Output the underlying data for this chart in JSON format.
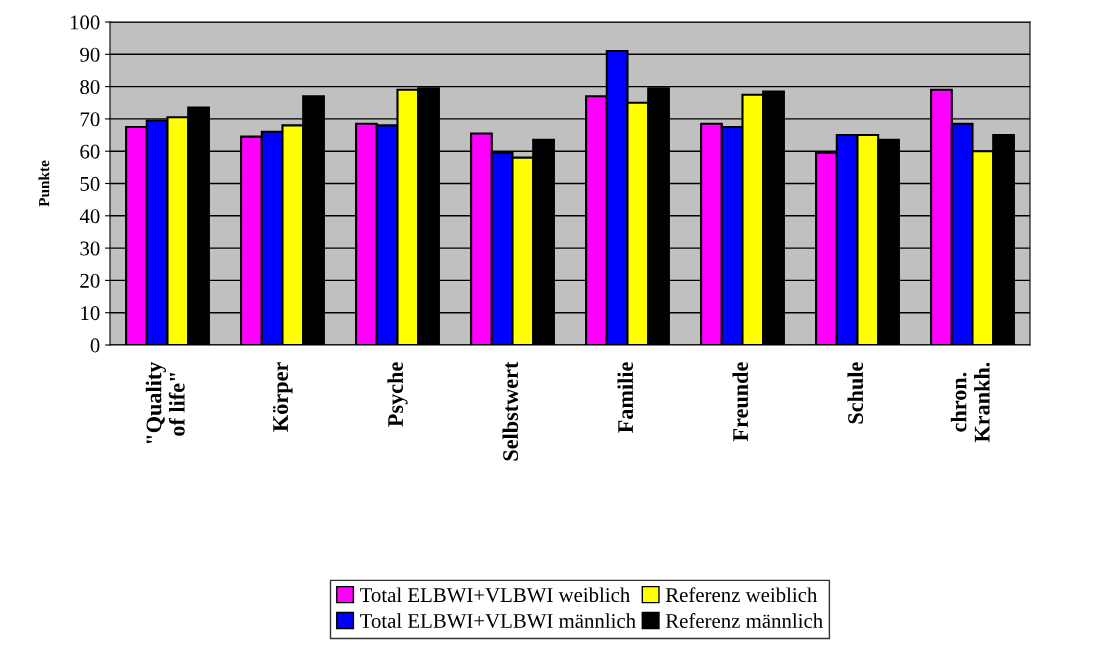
{
  "chart_data": {
    "type": "bar",
    "ylabel": "Punkte",
    "categories": [
      "\"Quality\nof life\"",
      "Körper",
      "Psyche",
      "Selbstwert",
      "Familie",
      "Freunde",
      "Schule",
      "chron.\nKrankh."
    ],
    "series": [
      {
        "name": "Total ELBWI+VLBWI weiblich",
        "color": "#ff00ff",
        "values": [
          67.5,
          64.5,
          68.5,
          65.5,
          77,
          68.5,
          59.5,
          79
        ]
      },
      {
        "name": "Total ELBWI+VLBWI männlich",
        "color": "#0000ff",
        "values": [
          69.5,
          66,
          68,
          59.5,
          91,
          67.5,
          65,
          68.5
        ]
      },
      {
        "name": "Referenz weiblich",
        "color": "#ffff00",
        "values": [
          70.5,
          68,
          79,
          58,
          75,
          77.5,
          65,
          60
        ]
      },
      {
        "name": "Referenz männlich",
        "color": "#000000",
        "values": [
          73.5,
          77,
          79.5,
          63.5,
          79.5,
          78.5,
          63.5,
          65
        ]
      }
    ],
    "ylim": [
      0,
      100
    ],
    "yticks": [
      0,
      10,
      20,
      30,
      40,
      50,
      60,
      70,
      80,
      90,
      100
    ],
    "grid": "y",
    "legend": "bottom"
  }
}
